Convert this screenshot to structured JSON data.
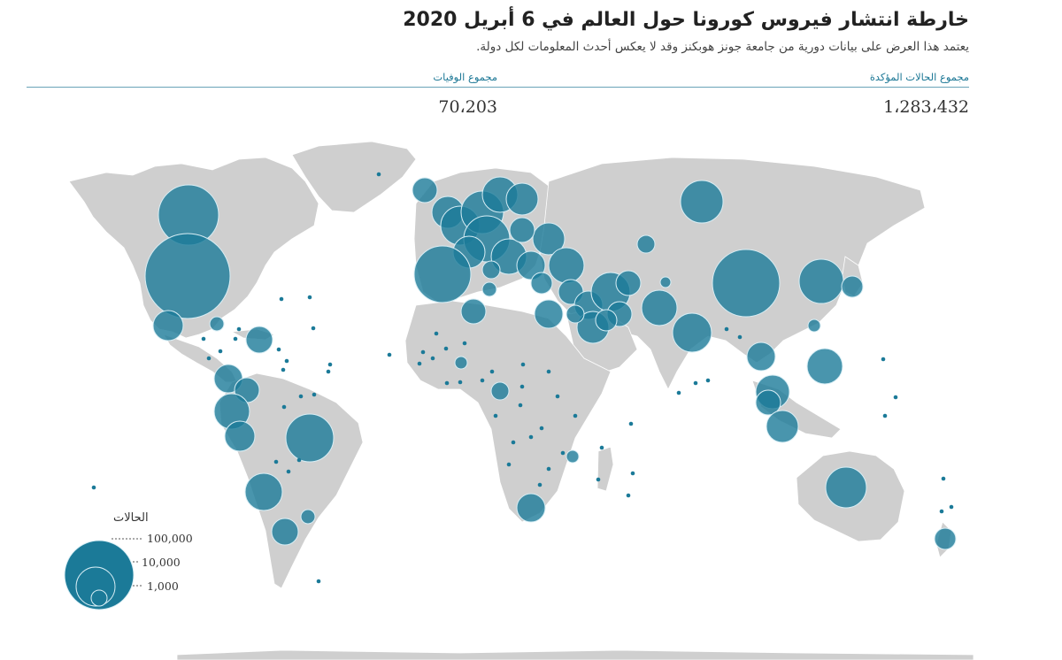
{
  "header": {
    "title": "خارطة انتشار فيروس كورونا حول العالم في 6 أبريل 2020",
    "subtitle": "يعتمد هذا العرض على بيانات دورية من جامعة جونز هوبكنز وقد لا يعكس أحدث المعلومات لكل دولة."
  },
  "stats": {
    "cases_label": "مجموع الحالات المؤكدة",
    "cases_value": "1،283،432",
    "deaths_label": "مجموع الوفيات",
    "deaths_value": "70،203"
  },
  "legend": {
    "title": "الحالات",
    "levels": [
      {
        "label": "100,000",
        "value": 100000
      },
      {
        "label": "10,000",
        "value": 10000
      },
      {
        "label": "1,000",
        "value": 1000
      }
    ]
  },
  "colors": {
    "bubble": "#1b7a98",
    "bubble_stroke": "#d8eef5",
    "land": "#cfcfcf",
    "accent_text": "#1d7896",
    "rule": "#6aa3b8"
  }
}
